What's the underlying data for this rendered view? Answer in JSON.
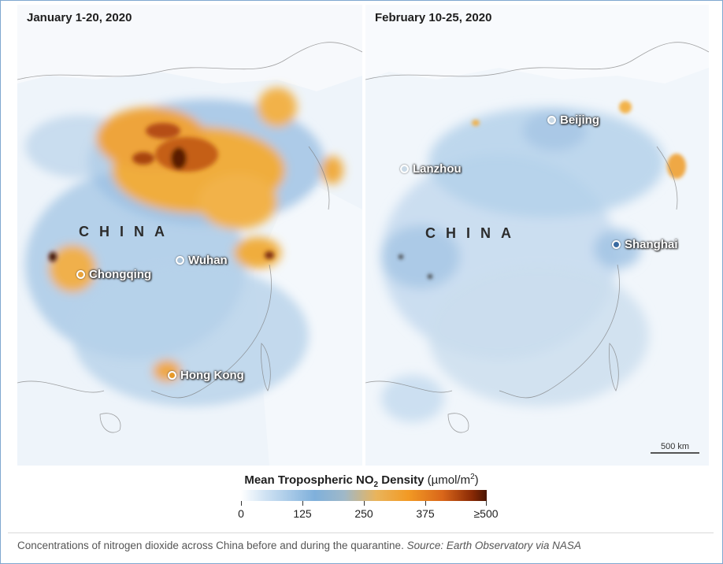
{
  "panels": [
    {
      "title": "January 1-20, 2020",
      "country_label": "CHINA",
      "cities": [
        {
          "name": "Chongqing",
          "marker_color": "#e8a23a"
        },
        {
          "name": "Wuhan",
          "marker_color": "#a9c2d8"
        },
        {
          "name": "Hong Kong",
          "marker_color": "#e79a2a"
        }
      ]
    },
    {
      "title": "February 10-25, 2020",
      "country_label": "CHINA",
      "cities": [
        {
          "name": "Beijing",
          "marker_color": "#c9d9e6"
        },
        {
          "name": "Lanzhou",
          "marker_color": "#c9d9e6"
        },
        {
          "name": "Shanghai",
          "marker_color": "#3a6aa0"
        }
      ],
      "scale_label": "500 km"
    }
  ],
  "legend": {
    "title_main": "Mean Tropospheric NO",
    "title_sub": "2",
    "title_density": "Density",
    "unit_prefix": "(µmol/m",
    "unit_sup": "2",
    "unit_suffix": ")",
    "ticks": [
      "0",
      "125",
      "250",
      "375",
      "≥500"
    ],
    "colors": [
      "#ffffff",
      "#7fb0db",
      "#f29a24",
      "#d9661a",
      "#4a1402"
    ]
  },
  "caption": {
    "text": "Concentrations of nitrogen dioxide across China before and during the quarantine.",
    "source": "Source: Earth Observatory via NASA"
  }
}
